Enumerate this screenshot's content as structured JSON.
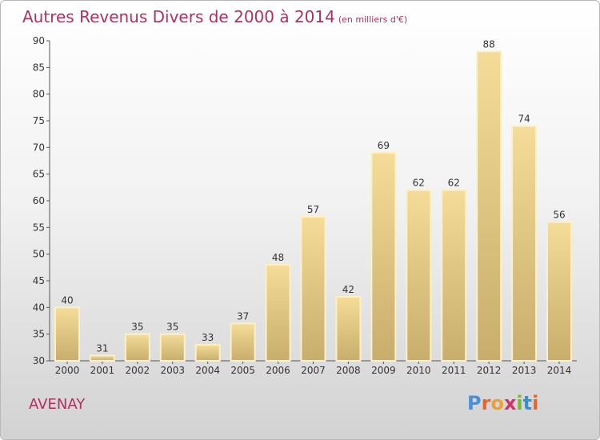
{
  "header": {
    "title": "Autres Revenus Divers de 2000 à 2014",
    "subtitle": "(en milliers d'€)"
  },
  "footer": {
    "commune": "AVENAY",
    "logo_letters": [
      "P",
      "r",
      "o",
      "x",
      "i",
      "t",
      "i"
    ],
    "logo_colors": [
      "#4a90d9",
      "#e8642a",
      "#f0a030",
      "#d6306a",
      "#7ab830",
      "#3a8fd0",
      "#e8642a"
    ]
  },
  "colors": {
    "title": "#b03060",
    "bar_light": "#f5dc98",
    "bar_dark": "#c8ad6c"
  },
  "chart_data": {
    "type": "bar",
    "title": "Autres Revenus Divers de 2000 à 2014",
    "xlabel": "",
    "ylabel": "",
    "categories": [
      "2000",
      "2001",
      "2002",
      "2003",
      "2004",
      "2005",
      "2006",
      "2007",
      "2008",
      "2009",
      "2010",
      "2011",
      "2012",
      "2013",
      "2014"
    ],
    "values": [
      40,
      31,
      35,
      35,
      33,
      37,
      48,
      57,
      42,
      69,
      62,
      62,
      88,
      74,
      56
    ],
    "ylim": [
      30,
      90
    ],
    "yticks": [
      30,
      35,
      40,
      45,
      50,
      55,
      60,
      65,
      70,
      75,
      80,
      85,
      90
    ],
    "grid": false,
    "data_labels": true
  }
}
